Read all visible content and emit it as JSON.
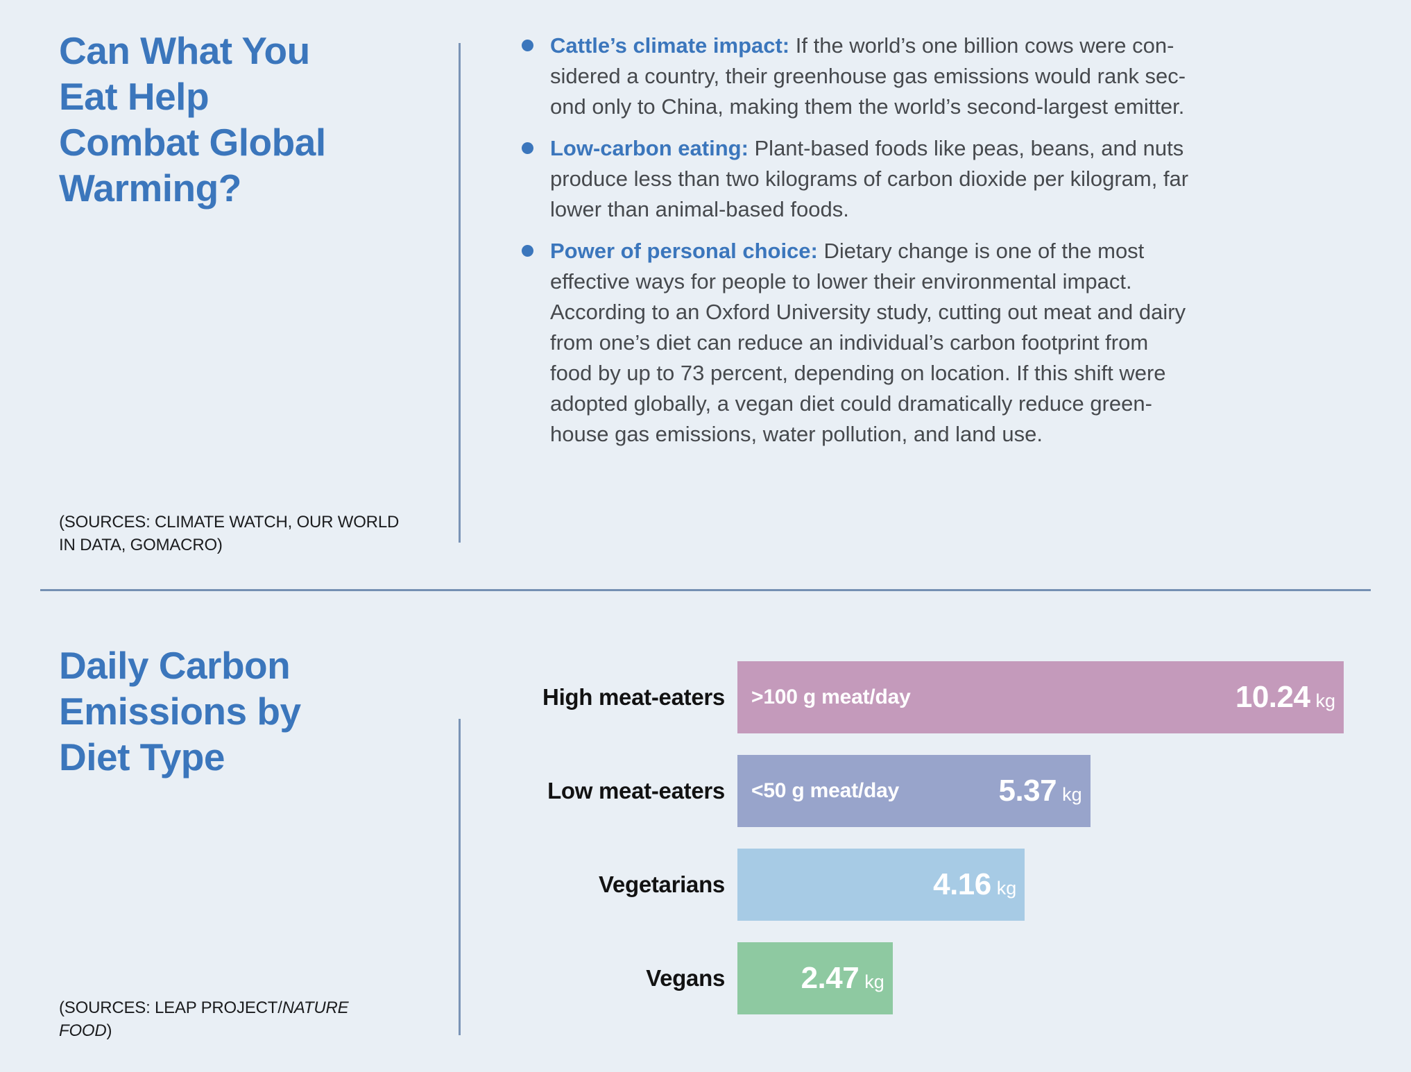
{
  "page": {
    "background_color": "#e9eff5",
    "accent_blue": "#3b76bc",
    "divider_color": "#7b94b6",
    "body_text_color": "#46494d"
  },
  "section_top": {
    "title": "Can What You\nEat Help\nCombat Global\nWarming?",
    "sources": "(SOURCES: CLIMATE WATCH, OUR WORLD\nIN DATA, GOMACRO)",
    "bullets": [
      {
        "lead": "Cattle’s climate impact:",
        "body": " If the world’s one billion cows were con-\nsidered a country, their greenhouse gas emissions would rank sec-\nond only to China, making them the world’s second-largest emitter."
      },
      {
        "lead": "Low-carbon eating:",
        "body": " Plant-based foods like peas, beans, and nuts\nproduce less than two kilograms of carbon dioxide per kilogram, far\nlower than animal-based foods."
      },
      {
        "lead": "Power of personal choice:",
        "body": " Dietary change is one of the most\neffective ways for people to lower their environmental impact.\nAccording to an Oxford University study, cutting out meat and dairy\nfrom one’s diet can reduce an individual’s carbon footprint from\nfood by up to 73 percent, depending on location. If this shift were\nadopted globally, a vegan diet could dramatically reduce green-\nhouse gas emissions, water pollution, and land use."
      }
    ]
  },
  "section_chart": {
    "title": "Daily Carbon\nEmissions by\nDiet Type",
    "sources_prefix": "(SOURCES: LEAP PROJECT/",
    "sources_italic": "NATURE\nFOOD",
    "sources_suffix": ")"
  },
  "chart_data": {
    "type": "bar",
    "orientation": "horizontal",
    "title": "Daily Carbon Emissions by Diet Type",
    "unit": "kg",
    "categories": [
      "High meat-eaters",
      "Low meat-eaters",
      "Vegetarians",
      "Vegans"
    ],
    "values": [
      10.24,
      5.37,
      4.16,
      2.47
    ],
    "notes": [
      ">100 g meat/day",
      "<50 g meat/day",
      "",
      ""
    ],
    "bar_colors": [
      "#c49abb",
      "#98a4cb",
      "#a7cbe5",
      "#8ec9a1"
    ],
    "bar_width_pct": [
      100,
      58.2,
      47.4,
      25.6
    ],
    "xlim": [
      0,
      10.24
    ],
    "grid": false,
    "legend": false,
    "value_labels_inside_bars": true
  }
}
